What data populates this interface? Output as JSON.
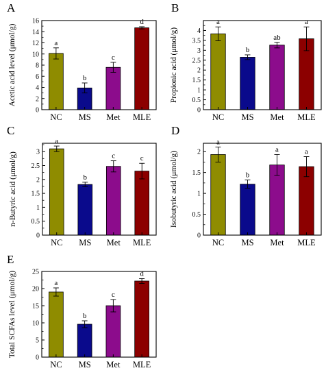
{
  "colors": {
    "NC": "#8f8c00",
    "MS": "#0a0a8c",
    "Met": "#8c0c8c",
    "MLE": "#8c0000"
  },
  "chart_data": [
    {
      "type": "bar",
      "panel": "A",
      "ylabel": "Acetic acid level (μmol/g)",
      "categories": [
        "NC",
        "MS",
        "Met",
        "MLE"
      ],
      "values": [
        10.1,
        3.9,
        7.6,
        14.7
      ],
      "errors": [
        1.0,
        0.9,
        0.9,
        0.2
      ],
      "significance": [
        "a",
        "b",
        "c",
        "d"
      ],
      "ylim": [
        0,
        16
      ],
      "yticks": [
        0,
        2,
        4,
        6,
        8,
        10,
        12,
        14,
        16
      ]
    },
    {
      "type": "bar",
      "panel": "B",
      "ylabel": "Propionic acid (μmol/g)",
      "categories": [
        "NC",
        "MS",
        "Met",
        "MLE"
      ],
      "values": [
        3.83,
        2.65,
        3.26,
        3.58
      ],
      "errors": [
        0.35,
        0.12,
        0.14,
        0.6
      ],
      "significance": [
        "a",
        "b",
        "ab",
        "a"
      ],
      "ylim": [
        0,
        4.5
      ],
      "yticks": [
        0,
        0.5,
        1,
        1.5,
        2,
        2.5,
        3,
        3.5,
        4
      ]
    },
    {
      "type": "bar",
      "panel": "C",
      "ylabel": "n-Butyric acid (μmol/g)",
      "categories": [
        "NC",
        "MS",
        "Met",
        "MLE"
      ],
      "values": [
        3.1,
        1.82,
        2.47,
        2.3
      ],
      "errors": [
        0.1,
        0.08,
        0.2,
        0.28
      ],
      "significance": [
        "a",
        "b",
        "c",
        "c"
      ],
      "ylim": [
        0,
        3.3
      ],
      "yticks": [
        0,
        0.5,
        1,
        1.5,
        2,
        2.5,
        3
      ]
    },
    {
      "type": "bar",
      "panel": "D",
      "ylabel": "Isobutyric acid (μmol/g)",
      "categories": [
        "NC",
        "MS",
        "Met",
        "MLE"
      ],
      "values": [
        1.93,
        1.22,
        1.68,
        1.64
      ],
      "errors": [
        0.18,
        0.1,
        0.25,
        0.24
      ],
      "significance": [
        "a",
        "b",
        "a",
        "a"
      ],
      "ylim": [
        0,
        2.2
      ],
      "yticks": [
        0,
        0.5,
        1,
        1.5,
        2
      ]
    },
    {
      "type": "bar",
      "panel": "E",
      "ylabel": "Total SCFAs level (μmol/g)",
      "categories": [
        "NC",
        "MS",
        "Met",
        "MLE"
      ],
      "values": [
        19.0,
        9.6,
        15.0,
        22.2
      ],
      "errors": [
        1.2,
        1.0,
        1.8,
        0.7
      ],
      "significance": [
        "a",
        "b",
        "c",
        "d"
      ],
      "ylim": [
        0,
        25
      ],
      "yticks": [
        0,
        5,
        10,
        15,
        20,
        25
      ]
    }
  ]
}
